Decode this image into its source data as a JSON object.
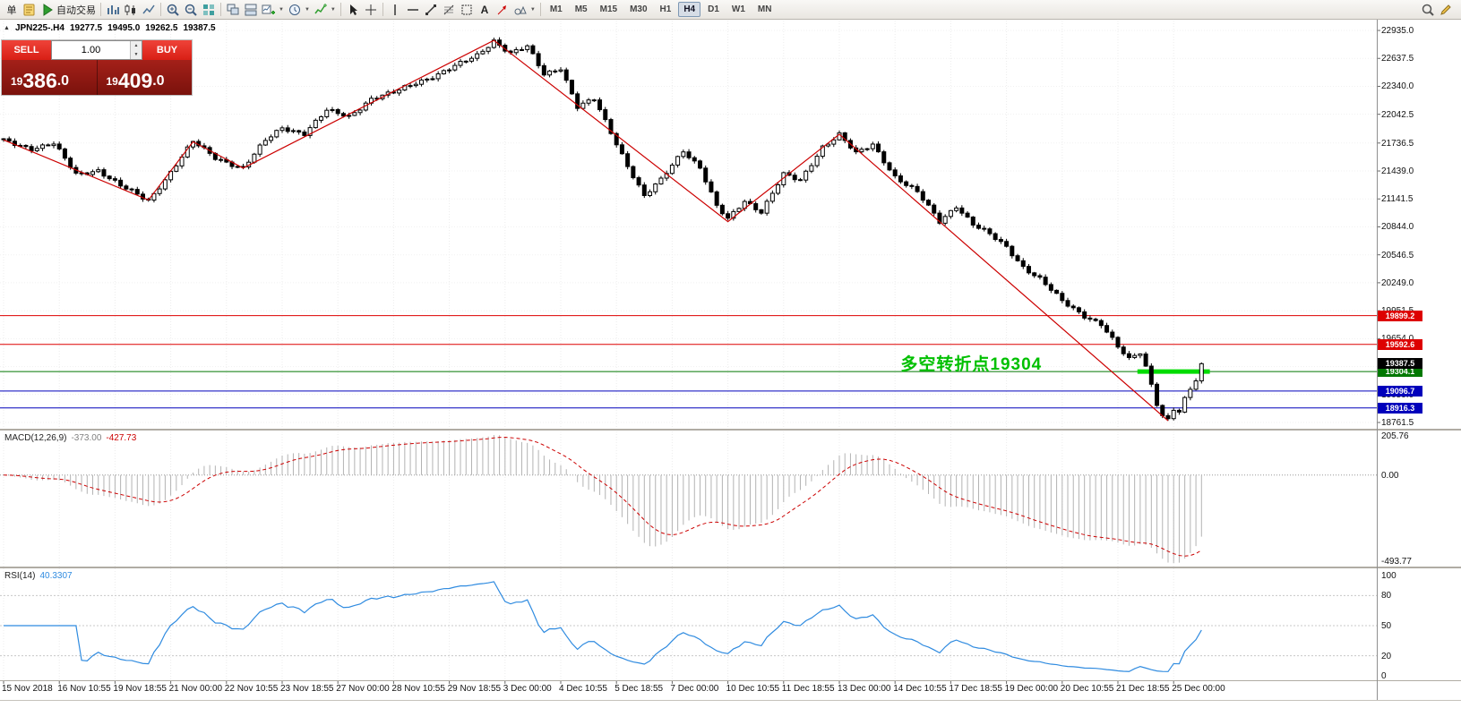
{
  "toolbar": {
    "items": [
      {
        "t": "label",
        "name": "new-order-label",
        "text": "单"
      },
      {
        "t": "icon",
        "name": "new-order-icon",
        "g": "doc"
      },
      {
        "t": "labeled",
        "name": "autotrade-button",
        "g": "play",
        "text": "自动交易"
      },
      {
        "t": "sep"
      },
      {
        "t": "icon",
        "name": "bar-chart-icon",
        "g": "bars"
      },
      {
        "t": "icon",
        "name": "candlestick-chart-icon",
        "g": "candles"
      },
      {
        "t": "icon",
        "name": "line-chart-icon",
        "g": "line"
      },
      {
        "t": "sep"
      },
      {
        "t": "icon",
        "name": "zoom-in-icon",
        "g": "zoomin"
      },
      {
        "t": "icon",
        "name": "zoom-out-icon",
        "g": "zoomout"
      },
      {
        "t": "icon",
        "name": "tile-windows-icon",
        "g": "tile"
      },
      {
        "t": "sep"
      },
      {
        "t": "icon",
        "name": "cascade-windows-icon",
        "g": "cascade"
      },
      {
        "t": "icon",
        "name": "arrange-windows-icon",
        "g": "arrange"
      },
      {
        "t": "dd",
        "name": "new-chart-button",
        "g": "newchart"
      },
      {
        "t": "dd",
        "name": "chart-profiles-button",
        "g": "clock"
      },
      {
        "t": "dd",
        "name": "indicators-button",
        "g": "indicators"
      },
      {
        "t": "sep"
      },
      {
        "t": "icon",
        "name": "cursor-icon",
        "g": "cursor"
      },
      {
        "t": "icon",
        "name": "crosshair-icon",
        "g": "cross"
      },
      {
        "t": "sep"
      },
      {
        "t": "icon",
        "name": "vertical-line-icon",
        "g": "vline"
      },
      {
        "t": "icon",
        "name": "horizontal-line-icon",
        "g": "hline"
      },
      {
        "t": "icon",
        "name": "trendline-icon",
        "g": "tline"
      },
      {
        "t": "icon",
        "name": "fibonacci-icon",
        "g": "fibo"
      },
      {
        "t": "icon",
        "name": "shapes-icon",
        "g": "shapes"
      },
      {
        "t": "icon",
        "name": "text-icon",
        "g": "text"
      },
      {
        "t": "icon",
        "name": "arrows-icon",
        "g": "arrows"
      },
      {
        "t": "dd",
        "name": "figures-button",
        "g": "figures"
      }
    ],
    "timeframes": [
      "M1",
      "M5",
      "M15",
      "M30",
      "H1",
      "H4",
      "D1",
      "W1",
      "MN"
    ],
    "active_timeframe": "H4",
    "right_icons": [
      {
        "name": "search-icon",
        "g": "search"
      },
      {
        "name": "edit-icon",
        "g": "edit"
      }
    ]
  },
  "trade_panel": {
    "sell_label": "SELL",
    "buy_label": "BUY",
    "volume": "1.00",
    "bid": {
      "prefix": "19",
      "big": "386",
      "suffix": ".0"
    },
    "ask": {
      "prefix": "19",
      "big": "409",
      "suffix": ".0"
    },
    "colors": {
      "button_red_top": "#ef4339",
      "button_red_bottom": "#d81f15",
      "panel_top": "#a42019",
      "panel_bottom": "#7a120c"
    }
  },
  "chart_data": {
    "type": "candlestick",
    "symbol": "JPN225-",
    "timeframe": "H4",
    "symbol_tf": "JPN225-.H4",
    "info": {
      "open": "19277.5",
      "high": "19495.0",
      "low": "19262.5",
      "close": "19387.5"
    },
    "bars": 216,
    "bars_per_label": 10,
    "price_ticks": [
      "22935.0",
      "22637.5",
      "22340.0",
      "22042.5",
      "21736.5",
      "21439.0",
      "21141.5",
      "20844.0",
      "20546.5",
      "20249.0",
      "19951.5",
      "19654.0",
      "19356.5",
      "19059.0",
      "18761.5"
    ],
    "path_anchors": [
      [
        0,
        21760
      ],
      [
        5,
        21680
      ],
      [
        9,
        21730
      ],
      [
        13,
        21400
      ],
      [
        17,
        21450
      ],
      [
        21,
        21280
      ],
      [
        26,
        21120
      ],
      [
        30,
        21430
      ],
      [
        34,
        21750
      ],
      [
        38,
        21580
      ],
      [
        43,
        21470
      ],
      [
        47,
        21760
      ],
      [
        50,
        21900
      ],
      [
        54,
        21840
      ],
      [
        58,
        22080
      ],
      [
        62,
        22020
      ],
      [
        66,
        22210
      ],
      [
        70,
        22270
      ],
      [
        74,
        22380
      ],
      [
        78,
        22470
      ],
      [
        82,
        22580
      ],
      [
        85,
        22670
      ],
      [
        88,
        22830
      ],
      [
        91,
        22690
      ],
      [
        94,
        22760
      ],
      [
        97,
        22470
      ],
      [
        100,
        22540
      ],
      [
        103,
        22120
      ],
      [
        106,
        22200
      ],
      [
        109,
        21850
      ],
      [
        112,
        21500
      ],
      [
        115,
        21170
      ],
      [
        118,
        21340
      ],
      [
        122,
        21660
      ],
      [
        125,
        21480
      ],
      [
        128,
        21060
      ],
      [
        130,
        20920
      ],
      [
        133,
        21120
      ],
      [
        136,
        21010
      ],
      [
        140,
        21400
      ],
      [
        143,
        21330
      ],
      [
        147,
        21700
      ],
      [
        150,
        21830
      ],
      [
        153,
        21620
      ],
      [
        156,
        21720
      ],
      [
        160,
        21380
      ],
      [
        164,
        21210
      ],
      [
        168,
        20900
      ],
      [
        171,
        21070
      ],
      [
        174,
        20870
      ],
      [
        177,
        20760
      ],
      [
        180,
        20630
      ],
      [
        183,
        20420
      ],
      [
        186,
        20290
      ],
      [
        190,
        20050
      ],
      [
        194,
        19900
      ],
      [
        197,
        19810
      ],
      [
        200,
        19560
      ],
      [
        202,
        19430
      ],
      [
        204,
        19510
      ],
      [
        205,
        19360
      ],
      [
        206,
        19170
      ],
      [
        207,
        18970
      ],
      [
        208,
        18840
      ],
      [
        209,
        18790
      ],
      [
        210,
        18900
      ],
      [
        211,
        18870
      ],
      [
        212,
        19000
      ],
      [
        213,
        19110
      ],
      [
        214,
        19210
      ],
      [
        215,
        19390
      ]
    ],
    "zigzag": [
      [
        0,
        21770
      ],
      [
        26,
        21130
      ],
      [
        34,
        21750
      ],
      [
        43,
        21470
      ],
      [
        88,
        22830
      ],
      [
        130,
        20900
      ],
      [
        150,
        21830
      ],
      [
        209,
        18780
      ]
    ],
    "zigzag_color": "#cc0000",
    "noise": {
      "close": 28,
      "wick": 30
    },
    "hlines": [
      {
        "price": 19899.2,
        "label": "19899.2",
        "color": "#dd0000"
      },
      {
        "price": 19592.6,
        "label": "19592.6",
        "color": "#dd0000"
      },
      {
        "price": 19304.1,
        "label": "19304.1",
        "color": "#007800"
      },
      {
        "price": 19096.7,
        "label": "19096.7",
        "color": "#0000bb"
      },
      {
        "price": 18916.3,
        "label": "18916.3",
        "color": "#0000bb"
      }
    ],
    "current_price": {
      "value": 19387.5,
      "label": "19387.5",
      "color": "#000000"
    },
    "highlight": {
      "price": 19304.1,
      "from_bar": 203.5,
      "to_bar": 216.5,
      "color": "#00dc00",
      "width": 5
    },
    "annotation": {
      "text": "多空转折点19304",
      "color": "#00c000",
      "bar": 161,
      "price": 19430
    },
    "time_labels": [
      "15 Nov 2018",
      "16 Nov 10:55",
      "19 Nov 18:55",
      "21 Nov 00:00",
      "22 Nov 10:55",
      "23 Nov 18:55",
      "27 Nov 00:00",
      "28 Nov 10:55",
      "29 Nov 18:55",
      "3 Dec 00:00",
      "4 Dec 10:55",
      "5 Dec 18:55",
      "7 Dec 00:00",
      "10 Dec 10:55",
      "11 Dec 18:55",
      "13 Dec 00:00",
      "14 Dec 10:55",
      "17 Dec 18:55",
      "19 Dec 00:00",
      "20 Dec 10:55",
      "21 Dec 18:55",
      "25 Dec 00:00"
    ],
    "macd": {
      "label": "MACD(12,26,9)",
      "main_value": "-373.00",
      "signal_value": "-427.73",
      "fast": 12,
      "slow": 26,
      "signal": 9,
      "axis": [
        "205.76",
        "0.00",
        "-493.77"
      ],
      "hist_color": "#b3b3b3",
      "signal_color": "#cc0000"
    },
    "rsi": {
      "label": "RSI(14)",
      "value": "40.3307",
      "period": 14,
      "axis": [
        100,
        80,
        50,
        20,
        0
      ],
      "levels": [
        80,
        50,
        20
      ],
      "line_color": "#2f8be0"
    }
  }
}
